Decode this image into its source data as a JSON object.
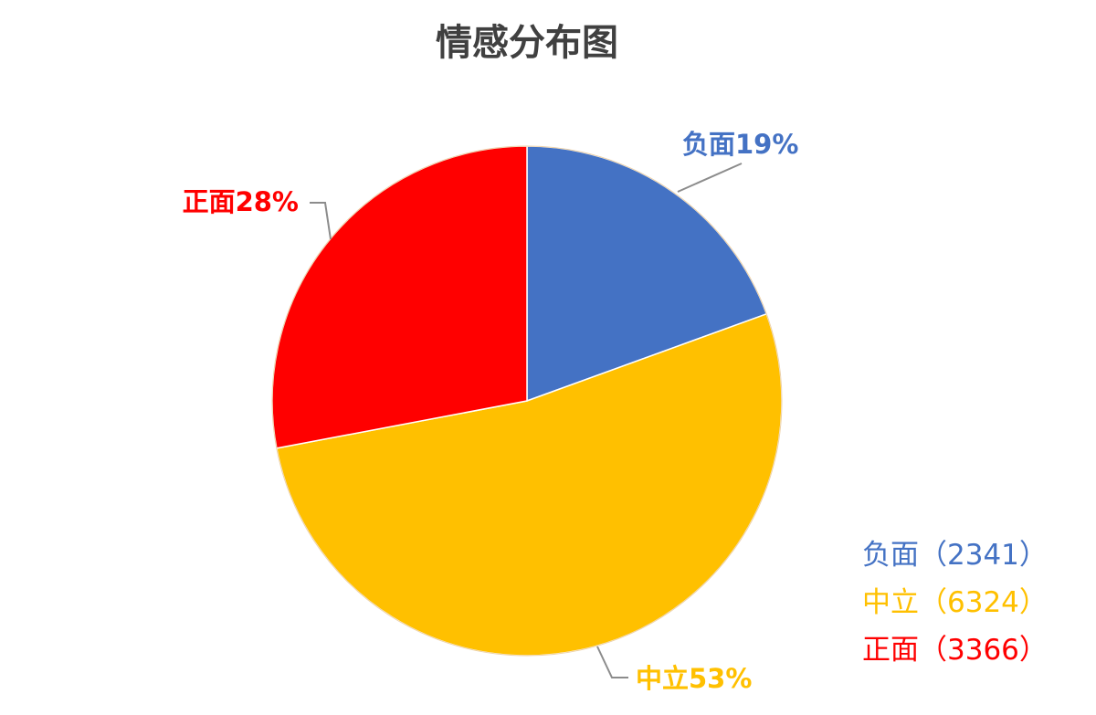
{
  "chart_data": {
    "type": "pie",
    "title": "情感分布图",
    "categories": [
      "负面",
      "中立",
      "正面"
    ],
    "values": [
      2341,
      6324,
      3366
    ],
    "colors": [
      "#4472C4",
      "#FFC000",
      "#FF0000"
    ],
    "data_labels": [
      "负面19%",
      "中立53%",
      "正面28%"
    ],
    "legend": {
      "position": "bottom-right",
      "entries": [
        "负面（2341）",
        "中立（6324）",
        "正面（3366）"
      ]
    }
  }
}
